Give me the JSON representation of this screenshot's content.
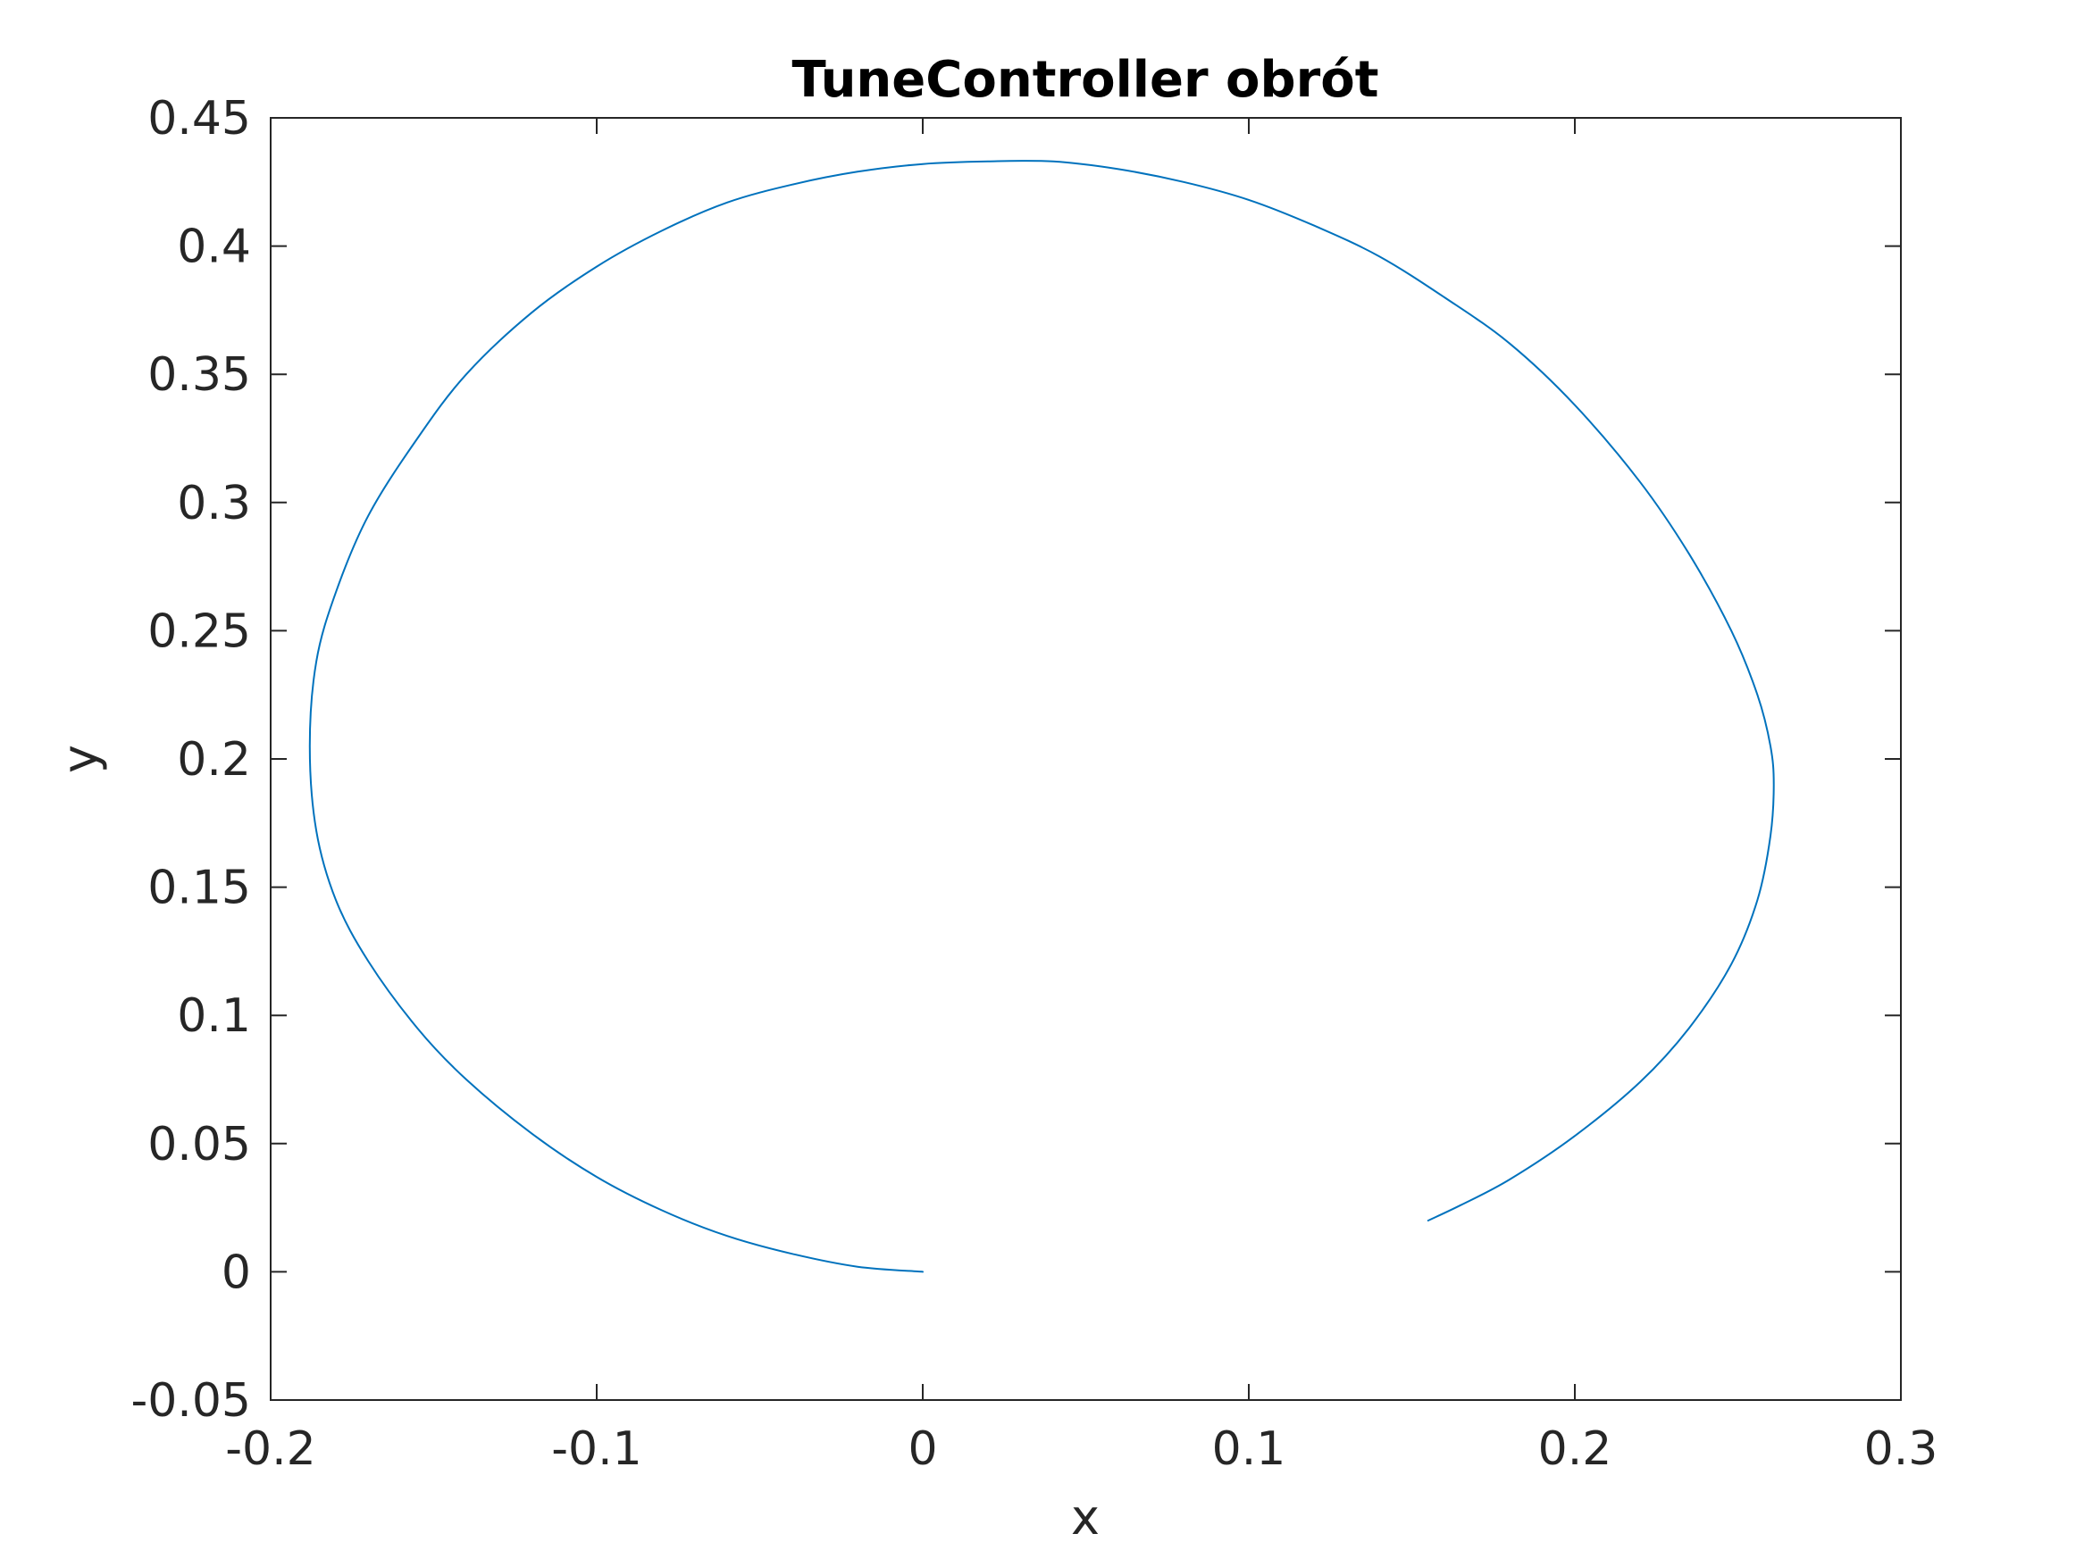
{
  "chart_data": {
    "type": "line",
    "title": "TuneController obrót",
    "xlabel": "x",
    "ylabel": "y",
    "xlim": [
      -0.2,
      0.3
    ],
    "ylim": [
      -0.05,
      0.45
    ],
    "xticks": [
      -0.2,
      -0.1,
      0,
      0.1,
      0.2,
      0.3
    ],
    "xtick_labels": [
      "-0.2",
      "-0.1",
      "0",
      "0.1",
      "0.2",
      "0.3"
    ],
    "yticks": [
      -0.05,
      0,
      0.05,
      0.1,
      0.15,
      0.2,
      0.25,
      0.3,
      0.35,
      0.4,
      0.45
    ],
    "ytick_labels": [
      "-0.05",
      "0",
      "0.05",
      "0.1",
      "0.15",
      "0.2",
      "0.25",
      "0.3",
      "0.35",
      "0.4",
      "0.45"
    ],
    "grid": false,
    "box": true,
    "series": [
      {
        "color": "#0072BD",
        "x": [
          0.0,
          -0.02,
          -0.04,
          -0.06,
          -0.08,
          -0.1,
          -0.12,
          -0.14,
          -0.155,
          -0.17,
          -0.18,
          -0.186,
          -0.188,
          -0.186,
          -0.18,
          -0.17,
          -0.155,
          -0.14,
          -0.12,
          -0.1,
          -0.08,
          -0.06,
          -0.04,
          -0.02,
          0.0,
          0.02,
          0.04,
          0.06,
          0.08,
          0.1,
          0.12,
          0.14,
          0.16,
          0.18,
          0.2,
          0.22,
          0.235,
          0.248,
          0.256,
          0.26,
          0.261,
          0.26,
          0.256,
          0.248,
          0.235,
          0.22,
          0.2,
          0.18,
          0.165,
          0.155
        ],
        "y": [
          0.0,
          0.002,
          0.007,
          0.014,
          0.024,
          0.037,
          0.054,
          0.075,
          0.095,
          0.121,
          0.145,
          0.172,
          0.205,
          0.238,
          0.265,
          0.295,
          0.325,
          0.35,
          0.374,
          0.392,
          0.406,
          0.417,
          0.424,
          0.429,
          0.432,
          0.433,
          0.433,
          0.43,
          0.425,
          0.418,
          0.408,
          0.396,
          0.38,
          0.362,
          0.338,
          0.308,
          0.28,
          0.25,
          0.225,
          0.205,
          0.19,
          0.17,
          0.145,
          0.12,
          0.095,
          0.074,
          0.053,
          0.036,
          0.026,
          0.02
        ]
      }
    ]
  }
}
